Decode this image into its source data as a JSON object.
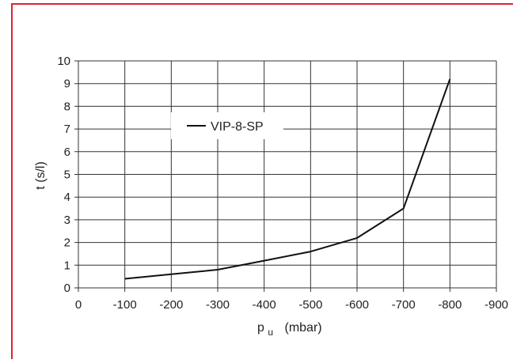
{
  "colors": {
    "frame": "#d9262e",
    "grid": "#333333",
    "line": "#111111"
  },
  "chart_data": {
    "type": "line",
    "xlabel": "p",
    "xlabel_subscript": "u",
    "xlabel_unit": "(mbar)",
    "ylabel": "t (s/l)",
    "x_ticks": [
      0,
      -100,
      -200,
      -300,
      -400,
      -500,
      -600,
      -700,
      -800,
      -900
    ],
    "x_tick_labels": [
      "0",
      "-100",
      "-200",
      "-300",
      "-400",
      "-500",
      "-600",
      "-700",
      "-800",
      "-900"
    ],
    "y_ticks": [
      0,
      1,
      2,
      3,
      4,
      5,
      6,
      7,
      8,
      9,
      10
    ],
    "y_tick_labels": [
      "0",
      "1",
      "2",
      "3",
      "4",
      "5",
      "6",
      "7",
      "8",
      "9",
      "10"
    ],
    "xlim": [
      0,
      -900
    ],
    "ylim": [
      0,
      10
    ],
    "grid": true,
    "legend_position": "upper-middle-left",
    "series": [
      {
        "name": "VIP-8-SP",
        "x": [
          -100,
          -200,
          -300,
          -400,
          -500,
          -600,
          -700,
          -800
        ],
        "y": [
          0.4,
          0.6,
          0.8,
          1.2,
          1.6,
          2.2,
          3.5,
          9.2
        ]
      }
    ]
  }
}
